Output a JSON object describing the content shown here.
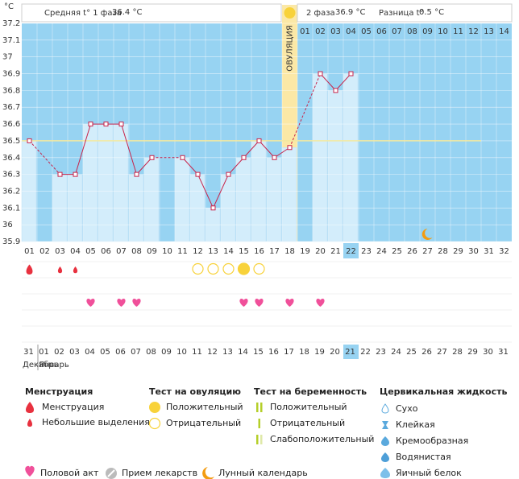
{
  "header": {
    "phase1_label": "Средняя t° 1 фаза",
    "phase1_value": "36.4 °C",
    "phase2_label": "2 фаза",
    "phase2_value": "36.9 °C",
    "diff_label": "Разница t°",
    "diff_value": "0.5 °C"
  },
  "chart_data": {
    "type": "line",
    "y_label": "°C",
    "x": [
      "01",
      "02",
      "03",
      "04",
      "05",
      "06",
      "07",
      "08",
      "09",
      "10",
      "11",
      "12",
      "13",
      "14",
      "15",
      "16",
      "17",
      "18",
      "19",
      "20",
      "21",
      "22",
      "23",
      "24",
      "25",
      "26",
      "27",
      "28",
      "29",
      "30",
      "31",
      "32"
    ],
    "series": [
      {
        "color": "#c8234a",
        "values": [
          36.5,
          null,
          36.3,
          36.3,
          36.6,
          36.6,
          36.6,
          36.3,
          36.4,
          null,
          36.4,
          36.3,
          36.1,
          36.3,
          36.4,
          36.5,
          36.4,
          36.46,
          null,
          36.9,
          36.8,
          36.9,
          null,
          null,
          null,
          null,
          null,
          null,
          null,
          null,
          null,
          null
        ]
      }
    ],
    "bar_color": "#d3edfb",
    "background": "#97d3f2",
    "ylim": [
      35.9,
      37.2
    ],
    "yticks": [
      35.9,
      36,
      36.1,
      36.2,
      36.3,
      36.4,
      36.5,
      36.6,
      36.7,
      36.8,
      36.9,
      37,
      37.1,
      37.2
    ],
    "grid": true,
    "coverline": 36.5,
    "coverline_color": "#f3e9a0",
    "ovulation": {
      "index": 17,
      "label": "ОВУЛЯЦИЯ",
      "color": "#fbe8a6"
    },
    "phase2_start": 18,
    "phase2_days": [
      "01",
      "02",
      "03",
      "04",
      "05",
      "06",
      "07",
      "08",
      "09",
      "10",
      "11",
      "12",
      "13",
      "14"
    ],
    "highlight_day": 21,
    "moon_day": 26
  },
  "events": {
    "menstruation": {
      "days": [
        0,
        2,
        3
      ],
      "sizes": [
        "large",
        "small",
        "small"
      ]
    },
    "ovulation_tests": {
      "days": [
        11,
        12,
        13,
        14,
        15
      ],
      "results": [
        "negative",
        "negative",
        "negative",
        "positive",
        "negative"
      ]
    },
    "intercourse": {
      "days": [
        4,
        6,
        7,
        14,
        15,
        17,
        19
      ]
    }
  },
  "calendar": {
    "dates": [
      "31",
      "01",
      "02",
      "03",
      "04",
      "05",
      "06",
      "07",
      "08",
      "09",
      "10",
      "11",
      "12",
      "13",
      "14",
      "15",
      "16",
      "17",
      "18",
      "19",
      "20",
      "21",
      "22",
      "23",
      "24",
      "25",
      "26",
      "27",
      "28",
      "29",
      "30",
      "31"
    ],
    "weekends": [
      2,
      3,
      9,
      10,
      16,
      17,
      23,
      24,
      30,
      31
    ],
    "highlight": 21,
    "months": [
      "Декабрь",
      "Январь"
    ]
  },
  "legend": {
    "menstruation": {
      "title": "Менструация",
      "items": [
        "Менструация",
        "Небольшие выделения"
      ]
    },
    "ovulation_test": {
      "title": "Тест на овуляцию",
      "items": [
        "Положительный",
        "Отрицательный"
      ]
    },
    "pregnancy_test": {
      "title": "Тест на беременность",
      "items": [
        "Положительный",
        "Отрицательный",
        "Слабоположительный"
      ]
    },
    "cervical_fluid": {
      "title": "Цервикальная жидкость",
      "items": [
        "Сухо",
        "Клейкая",
        "Кремообразная",
        "Водянистая",
        "Яичный белок"
      ]
    },
    "other": [
      "Половой акт",
      "Прием лекарств",
      "Лунный календарь"
    ]
  }
}
